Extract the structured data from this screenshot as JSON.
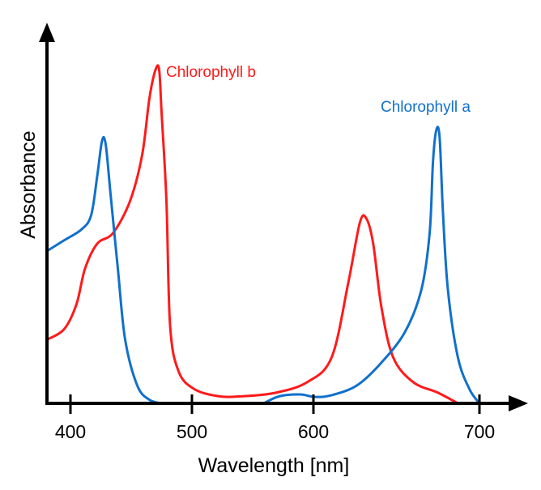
{
  "chart_data": {
    "type": "line",
    "xlabel": "Wavelength [nm]",
    "ylabel": "Absorbance",
    "x_ticks": [
      400,
      500,
      600,
      700
    ],
    "xlim": [
      381,
      720
    ],
    "ylim": [
      0,
      100
    ],
    "grid": false,
    "legend": "inline labels",
    "series": [
      {
        "name": "Chlorophyll b",
        "color": "#ff1a1a",
        "segments": [
          [
            [
              381,
              18
            ],
            [
              395,
              21
            ],
            [
              405,
              28
            ],
            [
              412,
              38
            ],
            [
              422,
              45
            ],
            [
              435,
              48
            ],
            [
              449,
              57
            ],
            [
              459,
              70
            ],
            [
              465,
              86
            ],
            [
              470,
              94
            ],
            [
              473,
              94
            ],
            [
              475,
              82
            ],
            [
              479,
              57
            ],
            [
              482,
              22
            ],
            [
              489,
              9
            ],
            [
              502,
              4
            ],
            [
              522,
              2
            ],
            [
              542,
              2
            ],
            [
              569,
              3
            ],
            [
              595,
              6
            ],
            [
              611,
              13
            ],
            [
              621,
              34
            ],
            [
              628,
              51
            ],
            [
              632,
              52
            ],
            [
              636,
              45
            ],
            [
              641,
              27
            ],
            [
              648,
              13
            ],
            [
              660,
              6
            ],
            [
              675,
              3
            ],
            [
              687,
              0
            ]
          ]
        ]
      },
      {
        "name": "Chlorophyll a",
        "color": "#1070cc",
        "segments": [
          [
            [
              381,
              43
            ],
            [
              395,
              46
            ],
            [
              409,
              49
            ],
            [
              417,
              53
            ],
            [
              422,
              64
            ],
            [
              426,
              74
            ],
            [
              429,
              73
            ],
            [
              433,
              59
            ],
            [
              439,
              38
            ],
            [
              445,
              18
            ],
            [
              455,
              5
            ],
            [
              465,
              1
            ],
            [
              475,
              0
            ]
          ],
          [
            [
              559,
              0
            ],
            [
              572,
              2
            ],
            [
              589,
              2.5
            ],
            [
              601,
              1.8
            ],
            [
              611,
              2.3
            ],
            [
              626,
              5
            ],
            [
              640,
              11
            ],
            [
              655,
              20
            ],
            [
              665,
              32
            ],
            [
              670,
              48
            ],
            [
              672,
              68
            ],
            [
              674,
              77
            ],
            [
              676,
              75
            ],
            [
              678,
              54
            ],
            [
              681,
              32
            ],
            [
              687,
              13
            ],
            [
              694,
              4
            ],
            [
              700,
              0
            ]
          ]
        ]
      }
    ]
  }
}
